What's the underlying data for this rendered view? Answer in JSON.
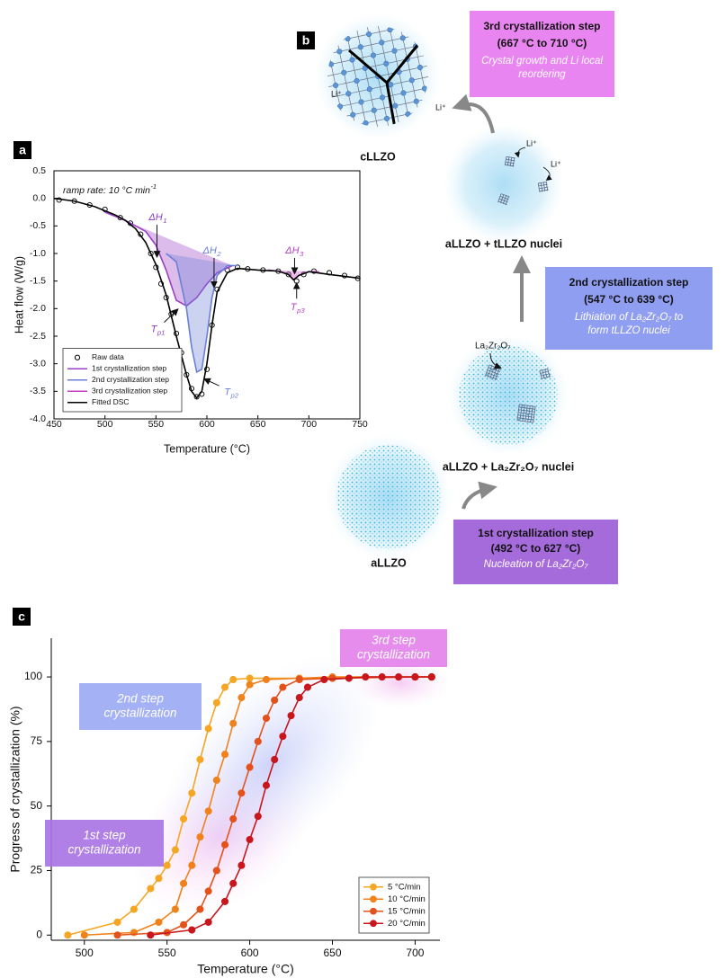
{
  "chart_data": [
    {
      "type": "line",
      "panel_label": "a",
      "x_label": "Temperature (°C)",
      "y_label": "Heat flow (W/g)",
      "xlim": [
        450,
        750
      ],
      "xticks": [
        450,
        500,
        550,
        600,
        650,
        700,
        750
      ],
      "ylim": [
        -4,
        0.5
      ],
      "yticks": [
        {
          "value": -4,
          "label": "-4.0"
        },
        -3.5,
        {
          "value": -3,
          "label": "-3.0"
        },
        -2.5,
        {
          "value": -2,
          "label": "-2.0"
        },
        -1.5,
        {
          "value": -1,
          "label": "-1.0"
        },
        -0.5,
        {
          "value": 0,
          "label": "0.0"
        },
        0.5
      ],
      "legend": "lower left",
      "annotations": [
        {
          "text": "ramp rate: 10 °C min",
          "sup": "-1"
        },
        {
          "text": "ΔH",
          "sub": "1"
        },
        {
          "text": "ΔH",
          "sub": "2"
        },
        {
          "text": "ΔH",
          "sub": "3"
        },
        {
          "text": "T",
          "sub": "p1"
        },
        {
          "text": "T",
          "sub": "p2"
        },
        {
          "text": "T",
          "sub": "p3"
        }
      ],
      "series": [
        {
          "name": "Raw data",
          "color": "#000000",
          "marker": "open-circle",
          "line": false,
          "x": [
            455,
            470,
            485,
            500,
            515,
            525,
            535,
            545,
            550,
            555,
            560,
            565,
            570,
            575,
            580,
            585,
            590,
            595,
            600,
            605,
            610,
            620,
            630,
            640,
            655,
            670,
            680,
            688,
            695,
            705,
            720,
            735,
            748
          ],
          "values": [
            -0.03,
            -0.05,
            -0.12,
            -0.2,
            -0.35,
            -0.45,
            -0.65,
            -1.0,
            -1.25,
            -1.55,
            -1.8,
            -2.1,
            -2.45,
            -2.8,
            -3.2,
            -3.45,
            -3.6,
            -3.55,
            -3.1,
            -2.3,
            -1.65,
            -1.3,
            -1.25,
            -1.28,
            -1.3,
            -1.32,
            -1.38,
            -1.5,
            -1.38,
            -1.32,
            -1.35,
            -1.4,
            -1.45
          ]
        },
        {
          "name": "1st crystallization step",
          "color": "#9a3fc4",
          "fill": true,
          "x": [
            500,
            520,
            540,
            550,
            560,
            570,
            580,
            590,
            600,
            610,
            625
          ],
          "values": [
            -0.25,
            -0.4,
            -0.6,
            -0.85,
            -1.3,
            -1.85,
            -1.95,
            -1.8,
            -1.55,
            -1.35,
            -1.22
          ]
        },
        {
          "name": "2nd crystallization step",
          "color": "#6a80d6",
          "fill": true,
          "x": [
            560,
            570,
            580,
            585,
            590,
            595,
            600,
            605,
            610,
            620,
            630
          ],
          "values": [
            -1.0,
            -1.15,
            -2.0,
            -2.7,
            -3.15,
            -3.1,
            -2.5,
            -1.8,
            -1.4,
            -1.22,
            -1.22
          ]
        },
        {
          "name": "3rd crystallization step",
          "color": "#c23fc4",
          "fill": true,
          "x": [
            660,
            670,
            680,
            685,
            690,
            700,
            710
          ],
          "values": [
            -1.3,
            -1.32,
            -1.38,
            -1.48,
            -1.4,
            -1.33,
            -1.33
          ]
        },
        {
          "name": "Fitted DSC",
          "color": "#000000",
          "x": [
            450,
            470,
            490,
            510,
            520,
            530,
            540,
            550,
            560,
            570,
            580,
            585,
            590,
            595,
            600,
            605,
            610,
            620,
            630,
            650,
            670,
            680,
            685,
            690,
            700,
            720,
            750
          ],
          "values": [
            0,
            -0.05,
            -0.15,
            -0.3,
            -0.4,
            -0.55,
            -0.8,
            -1.2,
            -1.75,
            -2.5,
            -3.2,
            -3.5,
            -3.62,
            -3.5,
            -3.0,
            -2.3,
            -1.7,
            -1.35,
            -1.27,
            -1.3,
            -1.32,
            -1.38,
            -1.48,
            -1.4,
            -1.33,
            -1.38,
            -1.45
          ]
        }
      ]
    },
    {
      "type": "line",
      "panel_label": "c",
      "x_label": "Temperature (°C)",
      "y_label": "Progress of crystallization (%)",
      "xlim": [
        480,
        715
      ],
      "xticks": [
        500,
        550,
        600,
        650,
        700
      ],
      "ylim": [
        -2,
        115
      ],
      "yticks": [
        0,
        25,
        50,
        75,
        100
      ],
      "legend": "lower right",
      "annotations": [
        {
          "lines": [
            "1st step",
            "crystallization"
          ]
        },
        {
          "lines": [
            "2nd step",
            "crystallization"
          ]
        },
        {
          "lines": [
            "3rd step",
            "crystallization"
          ]
        }
      ],
      "series": [
        {
          "name": "5 °C/min",
          "color": "#f5a623",
          "marker": "circle",
          "x": [
            490,
            520,
            530,
            540,
            545,
            550,
            555,
            560,
            565,
            570,
            575,
            580,
            585,
            590,
            600,
            650,
            700,
            710
          ],
          "values": [
            0,
            5,
            10,
            18,
            22,
            27,
            33,
            45,
            55,
            68,
            80,
            90,
            96,
            99,
            99.5,
            99.5,
            100,
            100
          ]
        },
        {
          "name": "10 °C/min",
          "color": "#f0821c",
          "marker": "circle",
          "x": [
            500,
            530,
            545,
            555,
            560,
            565,
            570,
            575,
            580,
            585,
            590,
            595,
            600,
            610,
            630,
            650,
            700,
            710
          ],
          "values": [
            0,
            1,
            5,
            10,
            20,
            27,
            38,
            48,
            60,
            70,
            82,
            92,
            97,
            99,
            99.5,
            100,
            100,
            100
          ]
        },
        {
          "name": "15 °C/min",
          "color": "#e4521c",
          "marker": "circle",
          "x": [
            520,
            550,
            560,
            570,
            575,
            580,
            585,
            590,
            595,
            600,
            605,
            610,
            615,
            620,
            630,
            650,
            700,
            710
          ],
          "values": [
            0,
            1,
            4,
            10,
            17,
            25,
            35,
            45,
            55,
            65,
            75,
            84,
            91,
            96,
            99,
            99.5,
            100,
            100
          ]
        },
        {
          "name": "20 °C/min",
          "color": "#c8161d",
          "marker": "circle",
          "x": [
            540,
            565,
            575,
            585,
            590,
            595,
            600,
            605,
            610,
            615,
            620,
            625,
            630,
            635,
            645,
            660,
            670,
            680,
            690,
            700,
            710
          ],
          "values": [
            0,
            2,
            5,
            13,
            20,
            27,
            37,
            46,
            58,
            68,
            77,
            85,
            92,
            96,
            99,
            99.5,
            100,
            100,
            100,
            100,
            100
          ]
        }
      ]
    }
  ],
  "diagram": {
    "panel_label": "b",
    "steps": [
      {
        "title": "1st crystallization step",
        "range": "(492 °C to 627 °C)",
        "description": [
          "Nucleation of La₂Zr₂O₇"
        ]
      },
      {
        "title": "2nd crystallization step",
        "range": "(547 °C to 639 °C)",
        "description": [
          "Lithiation of La₂Zr₂O₇ to",
          "form tLLZO nuclei"
        ]
      },
      {
        "title": "3rd crystallization step",
        "range": "(667 °C to 710 °C)",
        "description": [
          "Crystal growth and Li local",
          "reordering"
        ]
      }
    ],
    "states": [
      {
        "label": "aLLZO"
      },
      {
        "label": "aLLZO + La₂Zr₂O₇ nuclei",
        "inset": "La₂Zr₂O₇"
      },
      {
        "label": "aLLZO + tLLZO nuclei",
        "ions": [
          "Li⁺",
          "Li⁺"
        ]
      },
      {
        "label": "cLLZO",
        "ions": [
          "Li⁺",
          "Li⁺"
        ]
      }
    ]
  }
}
